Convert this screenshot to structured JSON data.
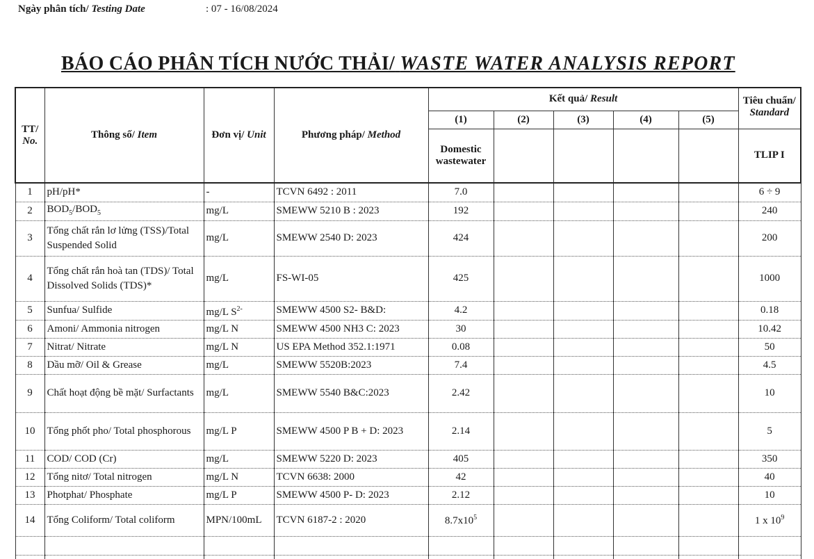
{
  "header": {
    "date_label_vi": "Ngày phân tích/",
    "date_label_en": "Testing Date",
    "date_value": ": 07 - 16/08/2024"
  },
  "title": {
    "vi": "BÁO CÁO PHÂN TÍCH NƯỚC THẢI/",
    "en": "WASTE WATER ANALYSIS REPORT"
  },
  "table": {
    "col_no_vi": "TT/",
    "col_no_en": "No.",
    "col_item_vi": "Thông số/",
    "col_item_en": "Item",
    "col_unit_vi": "Đơn vị/",
    "col_unit_en": "Unit",
    "col_method_vi": "Phương pháp/",
    "col_method_en": "Method",
    "col_result_vi": "Kết quả/",
    "col_result_en": "Result",
    "col_standard_vi": "Tiêu chuẩn/",
    "col_standard_en": "Standard",
    "result_cols": [
      "(1)",
      "(2)",
      "(3)",
      "(4)",
      "(5)"
    ],
    "sample_1": "Domestic wastewater",
    "standard_name": "TLIP I",
    "rows": [
      {
        "no": "1",
        "item": [
          {
            "t": "pH/pH*"
          }
        ],
        "unit": [
          {
            "t": "-"
          }
        ],
        "method": "TCVN 6492 : 2011",
        "result": [
          {
            "t": "7.0"
          }
        ],
        "standard": [
          {
            "t": "6 ÷ 9"
          }
        ]
      },
      {
        "no": "2",
        "item": [
          {
            "t": "BOD"
          },
          {
            "t": "5",
            "sub": true
          },
          {
            "t": "/BOD"
          },
          {
            "t": "5",
            "sub": true
          }
        ],
        "unit": [
          {
            "t": "mg/L"
          }
        ],
        "method": "SMEWW 5210 B : 2023",
        "result": [
          {
            "t": "192"
          }
        ],
        "standard": [
          {
            "t": "240"
          }
        ]
      },
      {
        "no": "3",
        "item": [
          {
            "t": "Tổng chất rắn lơ lửng (TSS)/Total Suspended Solid"
          }
        ],
        "unit": [
          {
            "t": "mg/L"
          }
        ],
        "method": "SMEWW 2540 D: 2023",
        "result": [
          {
            "t": "424"
          }
        ],
        "standard": [
          {
            "t": "200"
          }
        ]
      },
      {
        "no": "4",
        "item": [
          {
            "t": "Tổng chất rắn hoà tan (TDS)/ Total Dissolved Solids (TDS)*"
          }
        ],
        "unit": [
          {
            "t": "mg/L"
          }
        ],
        "method": "FS-WI-05",
        "result": [
          {
            "t": "425"
          }
        ],
        "standard": [
          {
            "t": "1000"
          }
        ]
      },
      {
        "no": "5",
        "item": [
          {
            "t": "Sunfua/ Sulfide"
          }
        ],
        "unit": [
          {
            "t": "mg/L S"
          },
          {
            "t": "2-",
            "sup": true
          }
        ],
        "method": "SMEWW 4500 S2- B&D:",
        "result": [
          {
            "t": "4.2"
          }
        ],
        "standard": [
          {
            "t": "0.18"
          }
        ]
      },
      {
        "no": "6",
        "item": [
          {
            "t": "Amoni/ Ammonia nitrogen"
          }
        ],
        "unit": [
          {
            "t": "mg/L N"
          }
        ],
        "method": "SMEWW 4500 NH3 C: 2023",
        "result": [
          {
            "t": "30"
          }
        ],
        "standard": [
          {
            "t": "10.42"
          }
        ]
      },
      {
        "no": "7",
        "item": [
          {
            "t": "Nitrat/ Nitrate"
          }
        ],
        "unit": [
          {
            "t": "mg/L N"
          }
        ],
        "method": "US EPA Method 352.1:1971",
        "result": [
          {
            "t": "0.08"
          }
        ],
        "standard": [
          {
            "t": "50"
          }
        ]
      },
      {
        "no": "8",
        "item": [
          {
            "t": "Dầu mỡ/ Oil & Grease"
          }
        ],
        "unit": [
          {
            "t": "mg/L"
          }
        ],
        "method": "SMEWW 5520B:2023",
        "result": [
          {
            "t": "7.4"
          }
        ],
        "standard": [
          {
            "t": "4.5"
          }
        ]
      },
      {
        "no": "9",
        "item": [
          {
            "t": "Chất hoạt động bề mặt/ Surfactants"
          }
        ],
        "unit": [
          {
            "t": "mg/L"
          }
        ],
        "method": "SMEWW 5540 B&C:2023",
        "result": [
          {
            "t": "2.42"
          }
        ],
        "standard": [
          {
            "t": "10"
          }
        ]
      },
      {
        "no": "10",
        "item": [
          {
            "t": "Tổng phốt pho/ Total phosphorous"
          }
        ],
        "unit": [
          {
            "t": "mg/L P"
          }
        ],
        "method": "SMEWW 4500 P B + D: 2023",
        "result": [
          {
            "t": "2.14"
          }
        ],
        "standard": [
          {
            "t": "5"
          }
        ]
      },
      {
        "no": "11",
        "item": [
          {
            "t": "COD/ COD (Cr)"
          }
        ],
        "unit": [
          {
            "t": "mg/L"
          }
        ],
        "method": "SMEWW 5220 D: 2023",
        "result": [
          {
            "t": "405"
          }
        ],
        "standard": [
          {
            "t": "350"
          }
        ]
      },
      {
        "no": "12",
        "item": [
          {
            "t": "Tổng nitơ/ Total nitrogen"
          }
        ],
        "unit": [
          {
            "t": "mg/L N"
          }
        ],
        "method": "TCVN 6638: 2000",
        "result": [
          {
            "t": "42"
          }
        ],
        "standard": [
          {
            "t": "40"
          }
        ]
      },
      {
        "no": "13",
        "item": [
          {
            "t": "Photphat/ Phosphate"
          }
        ],
        "unit": [
          {
            "t": "mg/L P"
          }
        ],
        "method": "SMEWW 4500 P- D: 2023",
        "result": [
          {
            "t": "2.12"
          }
        ],
        "standard": [
          {
            "t": "10"
          }
        ]
      },
      {
        "no": "14",
        "item": [
          {
            "t": "Tổng Coliform/ Total coliform"
          }
        ],
        "unit": [
          {
            "t": "MPN/100mL"
          }
        ],
        "method": "TCVN 6187-2 : 2020",
        "result": [
          {
            "t": "8.7x10"
          },
          {
            "t": "5",
            "sup": true
          }
        ],
        "standard": [
          {
            "t": "1 x 10"
          },
          {
            "t": "9",
            "sup": true
          }
        ]
      }
    ]
  }
}
